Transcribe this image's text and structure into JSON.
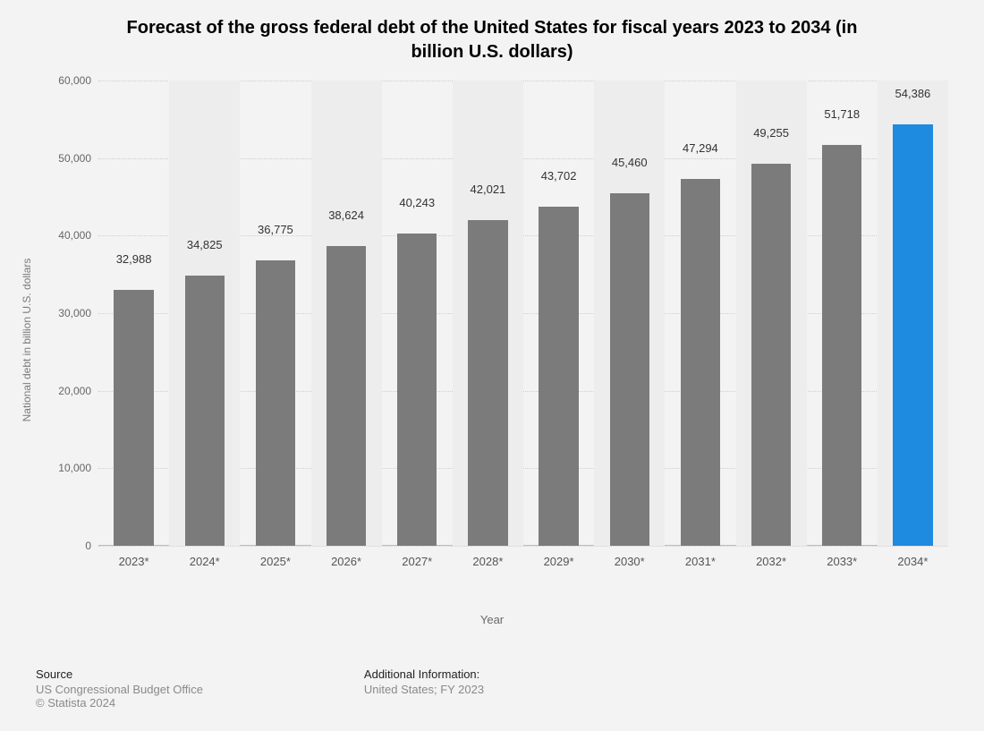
{
  "title_line1": "Forecast of the gross federal debt of the United States for fiscal years 2023 to 2034 (in",
  "title_line2": "billion U.S. dollars)",
  "chart": {
    "type": "bar",
    "ylabel": "National debt in billion U.S. dollars",
    "xlabel": "Year",
    "ylim_max": 60000,
    "ytick_step": 10000,
    "yticks": [
      "0",
      "10,000",
      "20,000",
      "30,000",
      "40,000",
      "50,000",
      "60,000"
    ],
    "categories": [
      "2023*",
      "2024*",
      "2025*",
      "2026*",
      "2027*",
      "2028*",
      "2029*",
      "2030*",
      "2031*",
      "2032*",
      "2033*",
      "2034*"
    ],
    "values": [
      32988,
      34825,
      36775,
      38624,
      40243,
      42021,
      43702,
      45460,
      47294,
      49255,
      51718,
      54386
    ],
    "value_labels": [
      "32,988",
      "34,825",
      "36,775",
      "38,624",
      "40,243",
      "42,021",
      "43,702",
      "45,460",
      "47,294",
      "49,255",
      "51,718",
      "54,386"
    ],
    "bar_colors": [
      "#7b7b7b",
      "#7b7b7b",
      "#7b7b7b",
      "#7b7b7b",
      "#7b7b7b",
      "#7b7b7b",
      "#7b7b7b",
      "#7b7b7b",
      "#7b7b7b",
      "#7b7b7b",
      "#7b7b7b",
      "#1e8ae0"
    ],
    "background_color": "#f3f3f3",
    "band_color": "#ededed",
    "grid_color": "#cfcfcf",
    "bar_width_ratio": 0.56,
    "label_fontsize": 13,
    "tick_fontsize": 12
  },
  "footer": {
    "source_head": "Source",
    "source_line1": "US Congressional Budget Office",
    "source_line2": "© Statista 2024",
    "addl_head": "Additional Information:",
    "addl_line1": "United States; FY 2023"
  }
}
